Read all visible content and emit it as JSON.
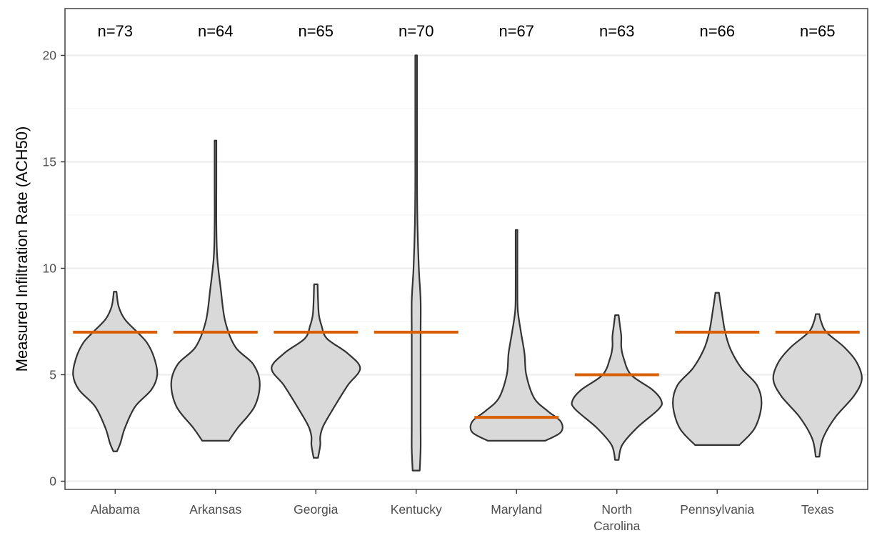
{
  "chart_data": {
    "type": "violin",
    "title": "",
    "xlabel": "",
    "ylabel": "Measured Infiltration Rate (ACH50)",
    "ylim": [
      -0.3,
      22
    ],
    "y_ticks": [
      0,
      5,
      10,
      15,
      20
    ],
    "grid": true,
    "colors": {
      "violin_fill": "#d9d9d9",
      "violin_stroke": "#333333",
      "reference_line": "#d95f02",
      "grid_major": "#ebebeb",
      "grid_minor": "#f3f3f3"
    },
    "categories": [
      {
        "label": "Alabama",
        "n_label": "n=73",
        "n": 73,
        "reference": 7,
        "min": 1.4,
        "max": 8.9,
        "shape": [
          [
            1.4,
            0.04
          ],
          [
            1.8,
            0.12
          ],
          [
            2.5,
            0.22
          ],
          [
            3.5,
            0.45
          ],
          [
            4.3,
            0.82
          ],
          [
            5,
            0.95
          ],
          [
            5.8,
            0.88
          ],
          [
            6.5,
            0.72
          ],
          [
            7,
            0.5
          ],
          [
            7.6,
            0.22
          ],
          [
            8.2,
            0.08
          ],
          [
            8.9,
            0.03
          ]
        ]
      },
      {
        "label": "Arkansas",
        "n_label": "n=64",
        "n": 64,
        "reference": 7,
        "min": 1.9,
        "max": 16,
        "shape": [
          [
            1.9,
            0.3
          ],
          [
            2.5,
            0.5
          ],
          [
            3.5,
            0.88
          ],
          [
            4.6,
            1
          ],
          [
            5.5,
            0.85
          ],
          [
            6.3,
            0.45
          ],
          [
            7.5,
            0.22
          ],
          [
            9,
            0.12
          ],
          [
            10.5,
            0.04
          ],
          [
            12,
            0.02
          ],
          [
            14,
            0.02
          ],
          [
            16,
            0.02
          ]
        ]
      },
      {
        "label": "Georgia",
        "n_label": "n=65",
        "n": 65,
        "reference": 7,
        "min": 1.1,
        "max": 9.25,
        "shape": [
          [
            1.1,
            0.05
          ],
          [
            1.7,
            0.1
          ],
          [
            2.1,
            0.1
          ],
          [
            2.6,
            0.17
          ],
          [
            3.5,
            0.42
          ],
          [
            4.5,
            0.72
          ],
          [
            5.3,
            1
          ],
          [
            6,
            0.72
          ],
          [
            6.7,
            0.25
          ],
          [
            7.3,
            0.13
          ],
          [
            7.8,
            0.07
          ],
          [
            8.5,
            0.05
          ],
          [
            9.25,
            0.04
          ]
        ]
      },
      {
        "label": "Kentucky",
        "n_label": "n=70",
        "n": 70,
        "reference": 7,
        "min": 0.5,
        "max": 20,
        "shape": [
          [
            0.5,
            0.08
          ],
          [
            1.5,
            0.1
          ],
          [
            2.5,
            0.1
          ],
          [
            3.5,
            0.1
          ],
          [
            5,
            0.1
          ],
          [
            7,
            0.1
          ],
          [
            8.5,
            0.1
          ],
          [
            10,
            0.06
          ],
          [
            12,
            0.03
          ],
          [
            14,
            0.02
          ],
          [
            17,
            0.02
          ],
          [
            20,
            0.02
          ]
        ]
      },
      {
        "label": "Maryland",
        "n_label": "n=67",
        "n": 67,
        "reference": 3,
        "min": 1.9,
        "max": 11.8,
        "shape": [
          [
            1.9,
            0.65
          ],
          [
            2.3,
            1
          ],
          [
            2.8,
            1
          ],
          [
            3.3,
            0.7
          ],
          [
            3.9,
            0.4
          ],
          [
            5,
            0.22
          ],
          [
            6,
            0.18
          ],
          [
            7,
            0.1
          ],
          [
            8,
            0.03
          ],
          [
            9,
            0.02
          ],
          [
            10.5,
            0.02
          ],
          [
            11.8,
            0.02
          ]
        ]
      },
      {
        "label": "North Carolina",
        "n_label": "n=63",
        "n": 63,
        "reference": 5,
        "min": 1,
        "max": 7.8,
        "shape": [
          [
            1,
            0.04
          ],
          [
            1.7,
            0.12
          ],
          [
            2.5,
            0.45
          ],
          [
            3.4,
            0.95
          ],
          [
            3.8,
            1
          ],
          [
            4.3,
            0.8
          ],
          [
            5,
            0.32
          ],
          [
            5.8,
            0.15
          ],
          [
            6.3,
            0.1
          ],
          [
            6.8,
            0.1
          ],
          [
            7.3,
            0.07
          ],
          [
            7.8,
            0.04
          ]
        ]
      },
      {
        "label": "Pennsylvania",
        "n_label": "n=66",
        "n": 66,
        "reference": 7,
        "min": 1.7,
        "max": 8.85,
        "shape": [
          [
            1.7,
            0.5
          ],
          [
            2.5,
            0.85
          ],
          [
            3.6,
            1
          ],
          [
            4.5,
            0.9
          ],
          [
            5.3,
            0.55
          ],
          [
            6.2,
            0.3
          ],
          [
            7,
            0.18
          ],
          [
            8,
            0.1
          ],
          [
            8.85,
            0.04
          ]
        ]
      },
      {
        "label": "Texas",
        "n_label": "n=65",
        "n": 65,
        "reference": 7,
        "min": 1.15,
        "max": 7.85,
        "shape": [
          [
            1.15,
            0.04
          ],
          [
            2,
            0.12
          ],
          [
            3,
            0.4
          ],
          [
            4,
            0.82
          ],
          [
            4.8,
            1
          ],
          [
            5.6,
            0.88
          ],
          [
            6.3,
            0.6
          ],
          [
            7,
            0.2
          ],
          [
            7.5,
            0.08
          ],
          [
            7.85,
            0.04
          ]
        ]
      }
    ]
  }
}
